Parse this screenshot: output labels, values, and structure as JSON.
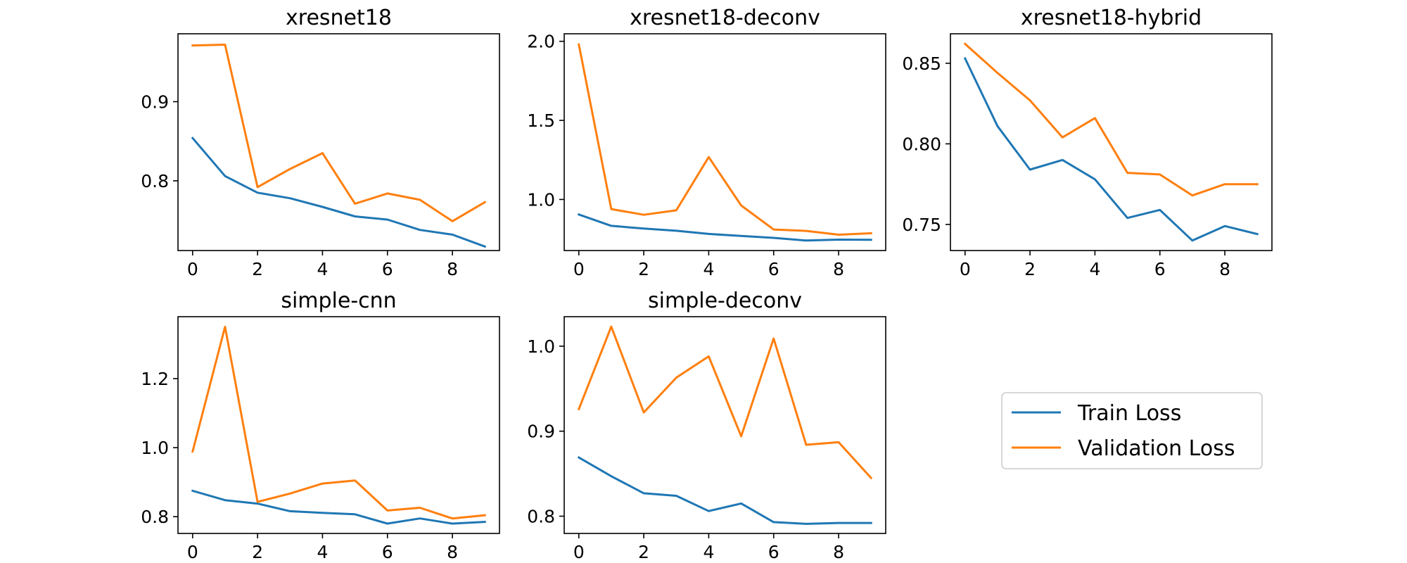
{
  "figure": {
    "legend": {
      "placement": "right of bottom row",
      "entries": [
        {
          "label": "Train Loss",
          "color": "#1f77b4"
        },
        {
          "label": "Validation Loss",
          "color": "#ff7f0e"
        }
      ]
    }
  },
  "chart_data": [
    {
      "type": "line",
      "title": "xresnet18",
      "xlabel": "",
      "ylabel": "",
      "x": [
        0,
        1,
        2,
        3,
        4,
        5,
        6,
        7,
        8,
        9
      ],
      "xlim": [
        -0.45,
        9.45
      ],
      "ylim": [
        0.7119,
        0.9858
      ],
      "xticks": [
        0,
        2,
        4,
        6,
        8
      ],
      "yticks": [
        0.8,
        0.9
      ],
      "ytick_labels": [
        "0.8",
        "0.9"
      ],
      "grid": false,
      "series": [
        {
          "name": "Train Loss",
          "color": "#1f77b4",
          "values": [
            0.854,
            0.806,
            0.785,
            0.778,
            0.767,
            0.755,
            0.751,
            0.738,
            0.732,
            0.717
          ]
        },
        {
          "name": "Validation Loss",
          "color": "#ff7f0e",
          "values": [
            0.971,
            0.972,
            0.792,
            0.815,
            0.835,
            0.771,
            0.784,
            0.776,
            0.749,
            0.773
          ]
        }
      ]
    },
    {
      "type": "line",
      "title": "xresnet18-deconv",
      "xlabel": "",
      "ylabel": "",
      "x": [
        0,
        1,
        2,
        3,
        4,
        5,
        6,
        7,
        8,
        9
      ],
      "xlim": [
        -0.45,
        9.45
      ],
      "ylim": [
        0.677,
        2.0476
      ],
      "xticks": [
        0,
        2,
        4,
        6,
        8
      ],
      "yticks": [
        1.0,
        1.5,
        2.0
      ],
      "ytick_labels": [
        "1.0",
        "1.5",
        "2.0"
      ],
      "grid": false,
      "series": [
        {
          "name": "Train Loss",
          "color": "#1f77b4",
          "values": [
            0.905,
            0.833,
            0.816,
            0.802,
            0.782,
            0.769,
            0.757,
            0.74,
            0.746,
            0.745
          ]
        },
        {
          "name": "Validation Loss",
          "color": "#ff7f0e",
          "values": [
            1.98,
            0.939,
            0.903,
            0.931,
            1.268,
            0.962,
            0.81,
            0.801,
            0.777,
            0.786
          ]
        }
      ]
    },
    {
      "type": "line",
      "title": "xresnet18-hybrid",
      "xlabel": "",
      "ylabel": "",
      "x": [
        0,
        1,
        2,
        3,
        4,
        5,
        6,
        7,
        8,
        9
      ],
      "xlim": [
        -0.45,
        9.45
      ],
      "ylim": [
        0.7338,
        0.8683
      ],
      "xticks": [
        0,
        2,
        4,
        6,
        8
      ],
      "yticks": [
        0.75,
        0.8,
        0.85
      ],
      "ytick_labels": [
        "0.75",
        "0.80",
        "0.85"
      ],
      "grid": false,
      "series": [
        {
          "name": "Train Loss",
          "color": "#1f77b4",
          "values": [
            0.853,
            0.811,
            0.784,
            0.79,
            0.778,
            0.754,
            0.759,
            0.74,
            0.749,
            0.744
          ]
        },
        {
          "name": "Validation Loss",
          "color": "#ff7f0e",
          "values": [
            0.862,
            0.844,
            0.827,
            0.804,
            0.816,
            0.782,
            0.781,
            0.768,
            0.775,
            0.775
          ]
        }
      ]
    },
    {
      "type": "line",
      "title": "simple-cnn",
      "xlabel": "",
      "ylabel": "",
      "x": [
        0,
        1,
        2,
        3,
        4,
        5,
        6,
        7,
        8,
        9
      ],
      "xlim": [
        -0.45,
        9.45
      ],
      "ylim": [
        0.7515,
        1.3794
      ],
      "xticks": [
        0,
        2,
        4,
        6,
        8
      ],
      "yticks": [
        0.8,
        1.0,
        1.2
      ],
      "ytick_labels": [
        "0.8",
        "1.0",
        "1.2"
      ],
      "grid": false,
      "series": [
        {
          "name": "Train Loss",
          "color": "#1f77b4",
          "values": [
            0.875,
            0.848,
            0.838,
            0.816,
            0.811,
            0.807,
            0.78,
            0.795,
            0.78,
            0.785
          ]
        },
        {
          "name": "Validation Loss",
          "color": "#ff7f0e",
          "values": [
            0.989,
            1.35,
            0.843,
            0.867,
            0.896,
            0.905,
            0.818,
            0.826,
            0.795,
            0.804
          ]
        }
      ]
    },
    {
      "type": "line",
      "title": "simple-deconv",
      "xlabel": "",
      "ylabel": "",
      "x": [
        0,
        1,
        2,
        3,
        4,
        5,
        6,
        7,
        8,
        9
      ],
      "xlim": [
        -0.45,
        9.45
      ],
      "ylim": [
        0.7797,
        1.0347
      ],
      "xticks": [
        0,
        2,
        4,
        6,
        8
      ],
      "yticks": [
        0.8,
        0.9,
        1.0
      ],
      "ytick_labels": [
        "0.8",
        "0.9",
        "1.0"
      ],
      "grid": false,
      "series": [
        {
          "name": "Train Loss",
          "color": "#1f77b4",
          "values": [
            0.869,
            0.847,
            0.827,
            0.824,
            0.806,
            0.815,
            0.793,
            0.791,
            0.792,
            0.792
          ]
        },
        {
          "name": "Validation Loss",
          "color": "#ff7f0e",
          "values": [
            0.926,
            1.023,
            0.922,
            0.963,
            0.988,
            0.894,
            1.009,
            0.884,
            0.887,
            0.845
          ]
        }
      ]
    }
  ]
}
